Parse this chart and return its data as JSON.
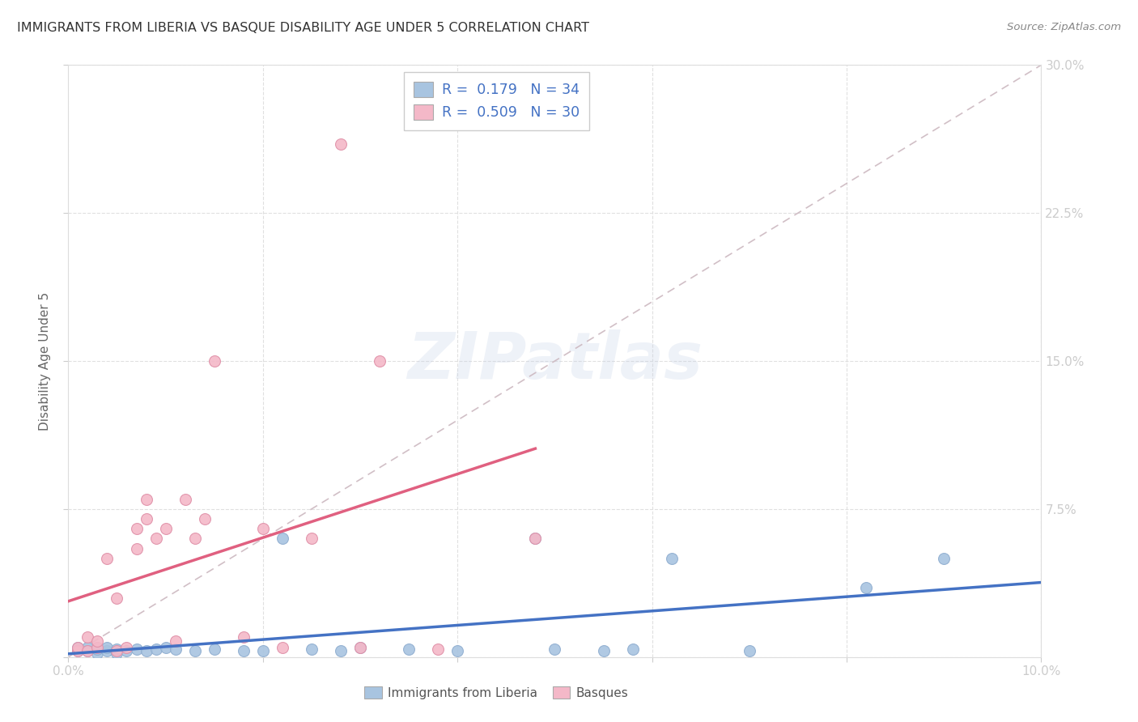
{
  "title": "IMMIGRANTS FROM LIBERIA VS BASQUE DISABILITY AGE UNDER 5 CORRELATION CHART",
  "source": "Source: ZipAtlas.com",
  "ylabel": "Disability Age Under 5",
  "xlim": [
    0.0,
    0.1
  ],
  "ylim": [
    0.0,
    0.3
  ],
  "color_liberia": "#a8c4e0",
  "color_basque": "#f4b8c8",
  "color_liberia_line": "#4472c4",
  "color_basque_line": "#e06080",
  "color_diagonal": "#ccb8c0",
  "liberia_x": [
    0.001,
    0.001,
    0.002,
    0.002,
    0.003,
    0.003,
    0.004,
    0.004,
    0.005,
    0.005,
    0.006,
    0.007,
    0.008,
    0.009,
    0.01,
    0.011,
    0.013,
    0.015,
    0.018,
    0.02,
    0.022,
    0.025,
    0.028,
    0.03,
    0.035,
    0.04,
    0.048,
    0.05,
    0.055,
    0.058,
    0.062,
    0.07,
    0.082,
    0.09
  ],
  "liberia_y": [
    0.003,
    0.005,
    0.003,
    0.005,
    0.002,
    0.004,
    0.003,
    0.005,
    0.002,
    0.004,
    0.003,
    0.004,
    0.003,
    0.004,
    0.005,
    0.004,
    0.003,
    0.004,
    0.003,
    0.003,
    0.06,
    0.004,
    0.003,
    0.005,
    0.004,
    0.003,
    0.06,
    0.004,
    0.003,
    0.004,
    0.05,
    0.003,
    0.035,
    0.05
  ],
  "basque_x": [
    0.001,
    0.001,
    0.002,
    0.002,
    0.003,
    0.003,
    0.004,
    0.005,
    0.005,
    0.006,
    0.007,
    0.007,
    0.008,
    0.008,
    0.009,
    0.01,
    0.011,
    0.012,
    0.013,
    0.014,
    0.015,
    0.018,
    0.02,
    0.022,
    0.025,
    0.028,
    0.03,
    0.032,
    0.038,
    0.048
  ],
  "basque_y": [
    0.003,
    0.005,
    0.003,
    0.01,
    0.005,
    0.008,
    0.05,
    0.003,
    0.03,
    0.005,
    0.055,
    0.065,
    0.07,
    0.08,
    0.06,
    0.065,
    0.008,
    0.08,
    0.06,
    0.07,
    0.15,
    0.01,
    0.065,
    0.005,
    0.06,
    0.26,
    0.005,
    0.15,
    0.004,
    0.06
  ]
}
